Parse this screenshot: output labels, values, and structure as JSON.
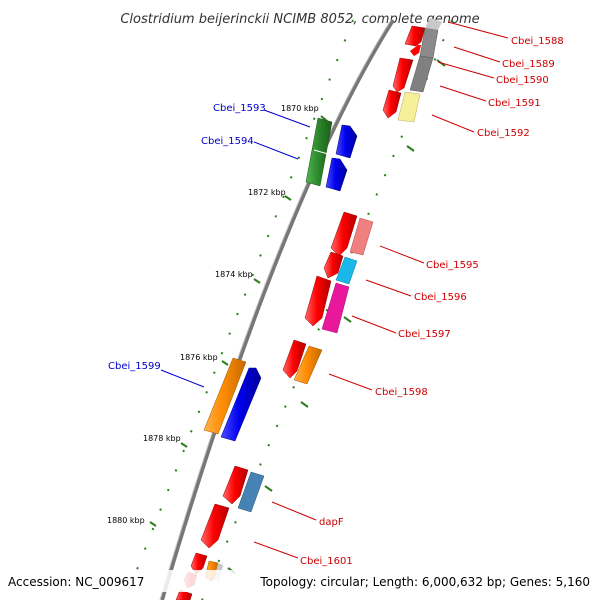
{
  "title": "Clostridium beijerinckii NCIMB 8052, complete genome",
  "footer": {
    "accession": "Accession: NC_009617",
    "summary": "Topology: circular; Length: 6,000,632 bp; Genes: 5,160"
  },
  "colors": {
    "backbone": "#777777",
    "tick": "#2e7d1e",
    "forward_label": "#0000cc",
    "reverse_label": "#cc0000"
  },
  "ticks": [
    {
      "label": "1870 kbp"
    },
    {
      "label": "1872 kbp"
    },
    {
      "label": "1874 kbp"
    },
    {
      "label": "1876 kbp"
    },
    {
      "label": "1878 kbp"
    },
    {
      "label": "1880 kbp"
    }
  ],
  "genes": [
    {
      "label": "Cbei_1588",
      "strand": "reverse",
      "color": "#ff0000"
    },
    {
      "label": "Cbei_1589",
      "strand": "reverse",
      "color": "#ff0000"
    },
    {
      "label": "Cbei_1590",
      "strand": "reverse",
      "color": "#808080"
    },
    {
      "label": "Cbei_1591",
      "strand": "reverse",
      "color": "#808080"
    },
    {
      "label": "Cbei_1592",
      "strand": "reverse",
      "color": "#f5ef9a"
    },
    {
      "label": "Cbei_1593",
      "strand": "forward",
      "color": "#2d8a2d"
    },
    {
      "label": "Cbei_1594",
      "strand": "forward",
      "color": "#0000ee"
    },
    {
      "label": "Cbei_1595",
      "strand": "reverse",
      "color": "#f08080"
    },
    {
      "label": "Cbei_1596",
      "strand": "reverse",
      "color": "#1ab8e8"
    },
    {
      "label": "Cbei_1597",
      "strand": "reverse",
      "color": "#e8179b"
    },
    {
      "label": "Cbei_1598",
      "strand": "reverse",
      "color": "#ff8c00"
    },
    {
      "label": "Cbei_1599",
      "strand": "forward",
      "color": "#ff8c00"
    },
    {
      "label": "dapF",
      "strand": "reverse",
      "color": "#4682b4"
    },
    {
      "label": "Cbei_1601",
      "strand": "reverse",
      "color": "#ff0000"
    }
  ]
}
